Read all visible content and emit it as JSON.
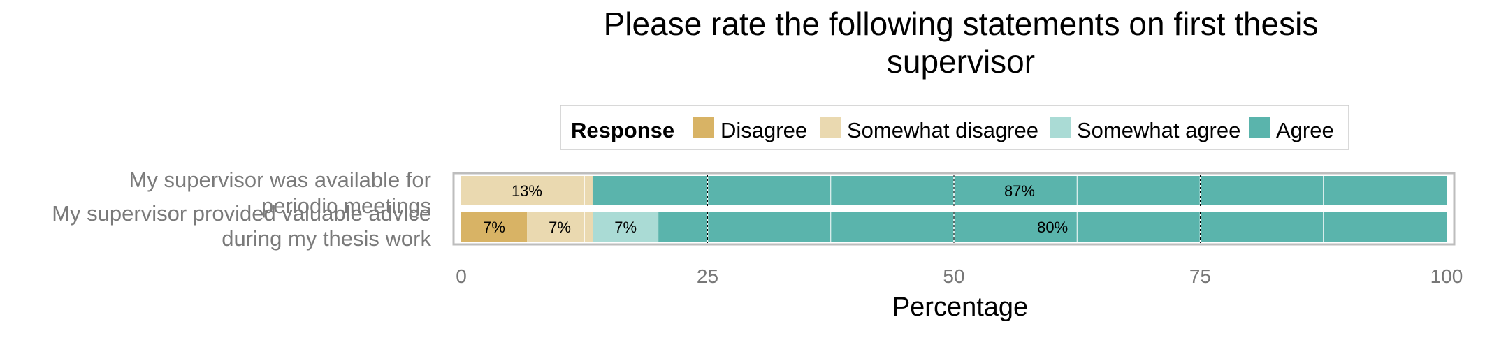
{
  "chart_data": {
    "type": "bar",
    "orientation": "horizontal",
    "stacked": true,
    "title": "Please rate the following statements on first thesis supervisor",
    "title_lines": [
      "Please rate the following statements on first thesis",
      "supervisor"
    ],
    "xlabel": "Percentage",
    "ylabel": "",
    "xlim": [
      0,
      100
    ],
    "x_ticks": [
      0,
      25,
      50,
      75,
      100
    ],
    "grid": true,
    "legend": {
      "title": "Response",
      "placement": "top",
      "entries": [
        "Disagree",
        "Somewhat disagree",
        "Somewhat agree",
        "Agree"
      ]
    },
    "categories": [
      "My supervisor was available for periodic meetings",
      "My supervisor provided valuable advice during my thesis work"
    ],
    "category_lines": [
      [
        "My supervisor was available for",
        "periodic meetings"
      ],
      [
        "My supervisor provided valuable advice",
        "during my thesis work"
      ]
    ],
    "series": [
      {
        "name": "Disagree",
        "color": "#D8B365",
        "values": [
          0,
          6.67
        ],
        "labels": [
          "",
          "7%"
        ]
      },
      {
        "name": "Somewhat disagree",
        "color": "#EAD9B0",
        "values": [
          13.33,
          6.67
        ],
        "labels": [
          "13%",
          "7%"
        ]
      },
      {
        "name": "Somewhat agree",
        "color": "#AADBD5",
        "values": [
          0,
          6.67
        ],
        "labels": [
          "",
          "7%"
        ]
      },
      {
        "name": "Agree",
        "color": "#5AB4AC",
        "values": [
          86.67,
          80
        ],
        "labels": [
          "87%",
          "80%"
        ]
      }
    ]
  }
}
